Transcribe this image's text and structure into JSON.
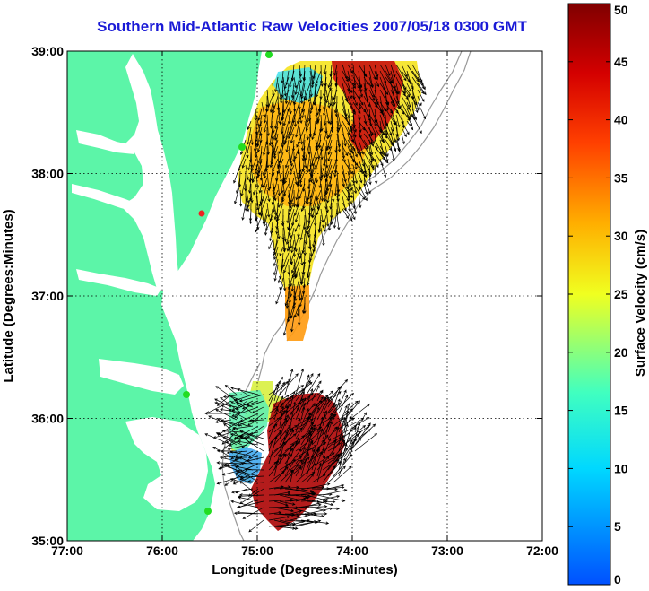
{
  "title": "Southern Mid-Atlantic Raw Velocities 2007/05/18 0300 GMT",
  "chart_data": {
    "type": "map",
    "xlabel": "Longitude (Degrees:Minutes)",
    "ylabel": "Latitude (Degrees:Minutes)",
    "xlim": [
      -77,
      -72
    ],
    "ylim": [
      35,
      39
    ],
    "x_ticks": [
      {
        "value": -77,
        "label": "77:00"
      },
      {
        "value": -76,
        "label": "76:00"
      },
      {
        "value": -75,
        "label": "75:00"
      },
      {
        "value": -74,
        "label": "74:00"
      },
      {
        "value": -73,
        "label": "73:00"
      },
      {
        "value": -72,
        "label": "72:00"
      }
    ],
    "y_ticks": [
      {
        "value": 35,
        "label": "35:00"
      },
      {
        "value": 36,
        "label": "36:00"
      },
      {
        "value": 37,
        "label": "37:00"
      },
      {
        "value": 38,
        "label": "38:00"
      },
      {
        "value": 39,
        "label": "39:00"
      }
    ],
    "grid": true,
    "colorbar": {
      "label": "Surface Velocity (cm/s)",
      "min": 0,
      "max": 50,
      "ticks": [
        {
          "value": 0,
          "label": "0"
        },
        {
          "value": 5,
          "label": "5"
        },
        {
          "value": 10,
          "label": "10"
        },
        {
          "value": 15,
          "label": "15"
        },
        {
          "value": 20,
          "label": "20"
        },
        {
          "value": 25,
          "label": "25"
        },
        {
          "value": 30,
          "label": "30"
        },
        {
          "value": 35,
          "label": "35"
        },
        {
          "value": 40,
          "label": "40"
        },
        {
          "value": 45,
          "label": "45"
        },
        {
          "value": 50,
          "label": "50"
        }
      ]
    }
  },
  "colors": {
    "land": "#5cf5a8",
    "water": "#ffffff",
    "title": "#1a1ad6",
    "isobath": "#999999",
    "station_green": "#22dd22",
    "station_red": "#ee2222"
  }
}
